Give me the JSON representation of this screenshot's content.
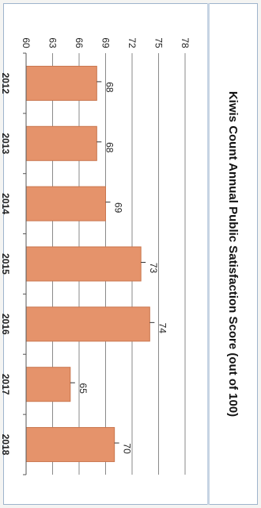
{
  "chart_data": {
    "type": "bar",
    "title": "Kiwis Count Annual Public Satisfaction Score (out of 100)",
    "categories": [
      "2012",
      "2013",
      "2014",
      "2015",
      "2016",
      "2017",
      "2018"
    ],
    "values": [
      68,
      68,
      69,
      73,
      74,
      65,
      70
    ],
    "data_labels": [
      "68",
      "68",
      "69",
      "73",
      "74",
      "65",
      "70"
    ],
    "y_ticks": [
      "60",
      "63",
      "66",
      "69",
      "72",
      "75",
      "78"
    ],
    "ylim": [
      60,
      78
    ],
    "grid": true,
    "legend": "none",
    "orientation": "rotated 90° clockwise",
    "bar_color": "#e5936b",
    "bar_edge_color": "#c9754d"
  }
}
